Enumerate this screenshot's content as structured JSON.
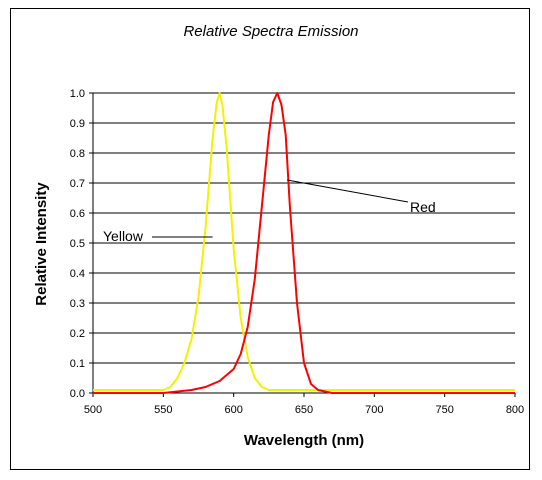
{
  "chart_data": {
    "type": "line",
    "title": "Relative Spectra Emission",
    "xlabel": "Wavelength (nm)",
    "ylabel": "Relative Intensity",
    "xlim": [
      500,
      800
    ],
    "ylim": [
      0,
      1.0
    ],
    "x_ticks": [
      "500",
      "550",
      "600",
      "650",
      "700",
      "750",
      "800"
    ],
    "y_ticks": [
      "0.0",
      "0.1",
      "0.2",
      "0.3",
      "0.4",
      "0.5",
      "0.6",
      "0.7",
      "0.8",
      "0.9",
      "1.0"
    ],
    "grid": true,
    "series": [
      {
        "name": "Yellow",
        "color": "#f2f200",
        "peak": 590,
        "x": [
          500,
          540,
          550,
          555,
          560,
          565,
          570,
          575,
          580,
          585,
          588,
          590,
          592,
          595,
          600,
          605,
          610,
          615,
          620,
          625,
          630,
          650,
          700,
          750,
          800
        ],
        "y": [
          0.01,
          0.01,
          0.01,
          0.02,
          0.05,
          0.1,
          0.18,
          0.32,
          0.55,
          0.85,
          0.97,
          1.0,
          0.96,
          0.82,
          0.48,
          0.25,
          0.12,
          0.05,
          0.02,
          0.01,
          0.01,
          0.01,
          0.01,
          0.01,
          0.01
        ]
      },
      {
        "name": "Red",
        "color": "#ff0000",
        "peak": 631,
        "x": [
          500,
          550,
          560,
          570,
          580,
          590,
          600,
          605,
          610,
          615,
          620,
          625,
          628,
          631,
          634,
          637,
          640,
          645,
          650,
          655,
          660,
          670,
          700,
          800
        ],
        "y": [
          0.0,
          0.0,
          0.005,
          0.01,
          0.02,
          0.04,
          0.08,
          0.13,
          0.22,
          0.38,
          0.62,
          0.86,
          0.97,
          1.0,
          0.96,
          0.86,
          0.62,
          0.3,
          0.1,
          0.03,
          0.01,
          0.0,
          0.0,
          0.0
        ]
      }
    ],
    "annotations": [
      {
        "text": "Yellow",
        "series": "Yellow"
      },
      {
        "text": "Red",
        "series": "Red"
      }
    ]
  }
}
